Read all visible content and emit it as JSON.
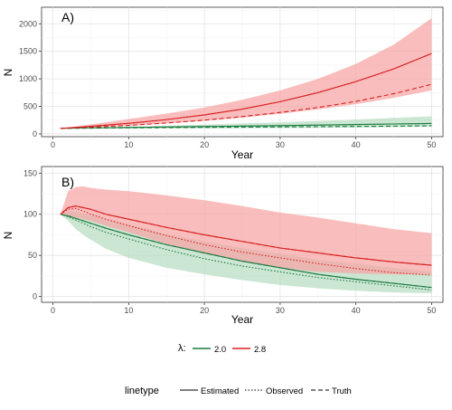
{
  "chart_data": [
    {
      "type": "line",
      "panel_label": "A)",
      "xlabel": "Year",
      "ylabel": "N",
      "xlim": [
        -1.5,
        51.5
      ],
      "ylim": [
        -50,
        2300
      ],
      "xticks": [
        0,
        10,
        20,
        30,
        40,
        50
      ],
      "yticks": [
        0,
        500,
        1000,
        1500,
        2000
      ],
      "grid": true,
      "series": [
        {
          "lambda": "2.0",
          "color": "#1b7a3e",
          "band_color": "#b7dcc2",
          "x": [
            1,
            5,
            10,
            15,
            20,
            25,
            30,
            35,
            40,
            45,
            50
          ],
          "lower": [
            100,
            100,
            100,
            100,
            101,
            103,
            106,
            110,
            115,
            122,
            130
          ],
          "upper": [
            100,
            112,
            130,
            150,
            170,
            190,
            210,
            235,
            260,
            290,
            320
          ],
          "estimated": [
            100,
            110,
            118,
            125,
            133,
            142,
            150,
            160,
            170,
            180,
            190
          ],
          "observed": [
            100,
            110,
            118,
            125,
            133,
            142,
            150,
            160,
            170,
            180,
            190
          ],
          "truth": [
            100,
            105,
            110,
            115,
            119,
            123,
            127,
            131,
            136,
            141,
            148
          ]
        },
        {
          "lambda": "2.8",
          "color": "#d81f1f",
          "band_color": "#f7a3a3",
          "x": [
            1,
            5,
            10,
            15,
            20,
            25,
            30,
            35,
            40,
            45,
            50
          ],
          "lower": [
            100,
            120,
            152,
            190,
            238,
            295,
            365,
            445,
            540,
            655,
            790
          ],
          "upper": [
            100,
            172,
            270,
            370,
            480,
            620,
            790,
            1000,
            1270,
            1620,
            2100
          ],
          "estimated": [
            100,
            138,
            192,
            260,
            345,
            450,
            585,
            750,
            950,
            1180,
            1460
          ],
          "observed": [
            100,
            138,
            192,
            260,
            345,
            450,
            585,
            750,
            950,
            1180,
            1460
          ],
          "truth": [
            100,
            122,
            155,
            198,
            250,
            315,
            390,
            480,
            590,
            730,
            900
          ]
        }
      ]
    },
    {
      "type": "line",
      "panel_label": "B)",
      "xlabel": "Year",
      "ylabel": "N",
      "xlim": [
        -1.5,
        51.5
      ],
      "ylim": [
        -7,
        158
      ],
      "xticks": [
        0,
        10,
        20,
        30,
        40,
        50
      ],
      "yticks": [
        0,
        50,
        100,
        150
      ],
      "grid": true,
      "series": [
        {
          "lambda": "2.0",
          "color": "#1b7a3e",
          "band_color": "#b7dcc2",
          "x": [
            1,
            2,
            3,
            4,
            5,
            7,
            10,
            15,
            20,
            25,
            30,
            35,
            40,
            45,
            50
          ],
          "lower": [
            100,
            92,
            82,
            75,
            69,
            58,
            47,
            35,
            27,
            20,
            14,
            10,
            7,
            5,
            4
          ],
          "upper": [
            100,
            104,
            103,
            101,
            99,
            94,
            88,
            76,
            67,
            59,
            52,
            45,
            40,
            35,
            30
          ],
          "estimated": [
            100,
            98,
            95,
            92,
            89,
            83,
            75,
            63,
            53,
            43,
            35,
            27,
            21,
            16,
            11
          ],
          "observed": [
            100,
            97,
            93,
            89,
            85,
            78,
            70,
            57,
            46,
            37,
            30,
            23,
            18,
            13,
            8
          ],
          "truth": [
            100,
            98,
            95,
            92,
            89,
            83,
            75,
            63,
            53,
            43,
            35,
            27,
            21,
            16,
            11
          ]
        },
        {
          "lambda": "2.8",
          "color": "#d81f1f",
          "band_color": "#f7a3a3",
          "x": [
            1,
            2,
            3,
            4,
            5,
            7,
            10,
            15,
            20,
            25,
            30,
            35,
            40,
            45,
            50
          ],
          "lower": [
            100,
            98,
            96,
            94,
            92,
            86,
            78,
            64,
            52,
            43,
            35,
            30,
            28,
            27,
            27
          ],
          "upper": [
            100,
            128,
            133,
            134,
            132,
            130,
            128,
            123,
            117,
            110,
            102,
            96,
            89,
            82,
            77
          ],
          "estimated": [
            100,
            108,
            110,
            108,
            106,
            100,
            94,
            84,
            75,
            67,
            59,
            53,
            47,
            42,
            38
          ],
          "observed": [
            100,
            106,
            107,
            104,
            100,
            94,
            86,
            74,
            63,
            54,
            47,
            40,
            34,
            29,
            26
          ],
          "truth": [
            100,
            108,
            110,
            108,
            106,
            100,
            94,
            84,
            75,
            67,
            59,
            53,
            47,
            42,
            38
          ]
        }
      ]
    }
  ],
  "legend_lambda": {
    "title": "λ:",
    "items": [
      {
        "label": "2.0",
        "color": "#1b7a3e"
      },
      {
        "label": "2.8",
        "color": "#d81f1f"
      }
    ]
  },
  "legend_linetype": {
    "title": "linetype",
    "items": [
      {
        "label": "Estimated",
        "style": "solid"
      },
      {
        "label": "Observed",
        "style": "dotted"
      },
      {
        "label": "Truth",
        "style": "dashed"
      }
    ]
  }
}
